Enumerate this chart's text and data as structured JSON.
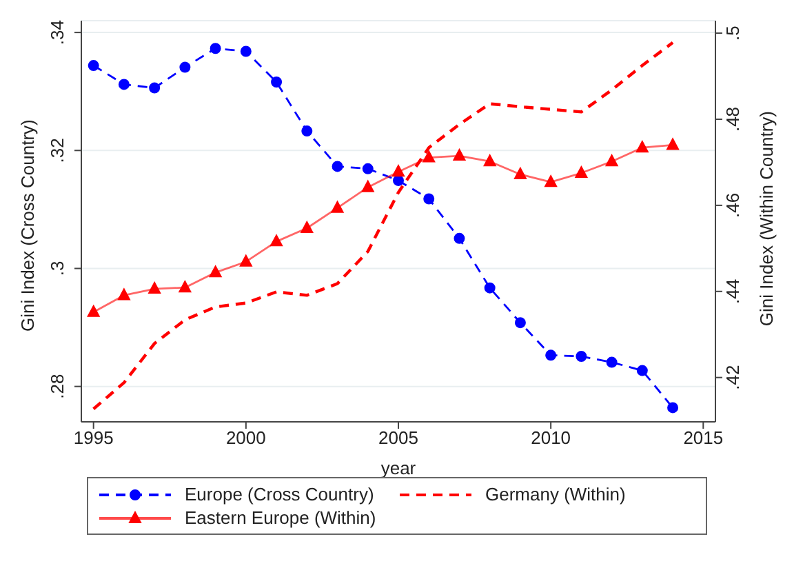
{
  "chart_data": {
    "type": "line",
    "xlabel": "year",
    "ylabel": "Gini Index (Cross Country)",
    "y2label": "Gini Index (Within Country)",
    "x": [
      1995,
      1996,
      1997,
      1998,
      1999,
      2000,
      2001,
      2002,
      2003,
      2004,
      2005,
      2006,
      2007,
      2008,
      2009,
      2010,
      2011,
      2012,
      2013,
      2014
    ],
    "series": [
      {
        "name": "Europe (Cross Country)",
        "color": "#0000ff",
        "line_style": "dashed",
        "marker": "circle",
        "values": [
          0.3344,
          0.3312,
          0.3306,
          0.3341,
          0.3373,
          0.3368,
          0.3316,
          0.3233,
          0.3173,
          0.3169,
          0.3149,
          0.3118,
          0.3051,
          0.2967,
          0.2908,
          0.2853,
          0.2851,
          0.2841,
          0.2827,
          0.2764
        ]
      },
      {
        "name": "Germany (Within)",
        "color": "#ff0000",
        "line_style": "dashed",
        "marker": "none",
        "axis": "y2",
        "values": [
          0.4127,
          0.4188,
          0.4279,
          0.4334,
          0.4364,
          0.4373,
          0.4399,
          0.4391,
          0.4418,
          0.4493,
          0.463,
          0.4734,
          0.4788,
          0.4836,
          0.4829,
          0.4823,
          0.4817,
          0.4868,
          0.4925,
          0.4978
        ]
      },
      {
        "name": "Eastern Europe (Within)",
        "color": "#ff0000",
        "line_style": "solid",
        "marker": "triangle",
        "axis": "y2",
        "values": [
          0.4352,
          0.4391,
          0.4406,
          0.4409,
          0.4444,
          0.4469,
          0.4516,
          0.4547,
          0.4594,
          0.4642,
          0.4678,
          0.4711,
          0.4715,
          0.4702,
          0.4672,
          0.4654,
          0.4675,
          0.4702,
          0.4734,
          0.474
        ]
      }
    ],
    "xlim": [
      1994.6,
      2015.4
    ],
    "xticks": [
      1995,
      2000,
      2005,
      2010,
      2015
    ],
    "ylim": [
      0.274,
      0.342
    ],
    "yticks": [
      {
        "value": 0.28,
        "label": ".28"
      },
      {
        "value": 0.3,
        "label": ".3"
      },
      {
        "value": 0.32,
        "label": ".32"
      },
      {
        "value": 0.34,
        "label": ".34"
      }
    ],
    "y2lim": [
      0.4097,
      0.5029
    ],
    "y2ticks": [
      {
        "value": 0.42,
        "label": ".42"
      },
      {
        "value": 0.44,
        "label": ".44"
      },
      {
        "value": 0.46,
        "label": ".46"
      },
      {
        "value": 0.48,
        "label": ".48"
      },
      {
        "value": 0.5,
        "label": ".5"
      }
    ],
    "grid": "y",
    "legend": "bottom"
  }
}
